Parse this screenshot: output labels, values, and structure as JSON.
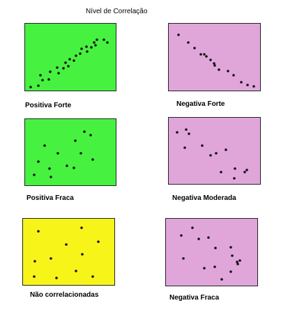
{
  "title": "Nível  de Correlação",
  "colors": {
    "green": "#46f23f",
    "pink": "#e0a6da",
    "yellow": "#f7f41a",
    "dot": "#111111"
  },
  "panels": [
    {
      "caption": "Positiva Forte",
      "fill": "green",
      "points": [
        [
          8,
          91
        ],
        [
          19,
          89
        ],
        [
          22,
          74
        ],
        [
          25,
          81
        ],
        [
          34,
          80
        ],
        [
          36,
          69
        ],
        [
          46,
          63
        ],
        [
          48,
          71
        ],
        [
          55,
          64
        ],
        [
          58,
          56
        ],
        [
          62,
          61
        ],
        [
          64,
          51
        ],
        [
          70,
          53
        ],
        [
          73,
          46
        ],
        [
          79,
          43
        ],
        [
          81,
          36
        ],
        [
          88,
          33
        ],
        [
          89,
          40
        ],
        [
          95,
          34
        ],
        [
          99,
          27
        ],
        [
          101,
          31
        ],
        [
          103,
          23
        ],
        [
          113,
          23
        ],
        [
          118,
          27
        ]
      ]
    },
    {
      "caption": "Negativa Forte",
      "fill": "pink",
      "points": [
        [
          14,
          16
        ],
        [
          28,
          27
        ],
        [
          37,
          35
        ],
        [
          46,
          44
        ],
        [
          51,
          44
        ],
        [
          54,
          47
        ],
        [
          60,
          52
        ],
        [
          65,
          57
        ],
        [
          66,
          60
        ],
        [
          72,
          66
        ],
        [
          85,
          68
        ],
        [
          93,
          74
        ],
        [
          104,
          84
        ],
        [
          113,
          88
        ],
        [
          122,
          90
        ]
      ]
    },
    {
      "caption": "Positiva Fraca",
      "fill": "green",
      "points": [
        [
          13,
          80
        ],
        [
          19,
          61
        ],
        [
          28,
          38
        ],
        [
          35,
          71
        ],
        [
          37,
          83
        ],
        [
          47,
          49
        ],
        [
          60,
          67
        ],
        [
          70,
          70
        ],
        [
          72,
          31
        ],
        [
          80,
          49
        ],
        [
          85,
          18
        ],
        [
          94,
          23
        ],
        [
          97,
          58
        ]
      ]
    },
    {
      "caption": "Negativa Moderada",
      "fill": "pink",
      "points": [
        [
          12,
          21
        ],
        [
          25,
          17
        ],
        [
          29,
          23
        ],
        [
          23,
          43
        ],
        [
          48,
          40
        ],
        [
          60,
          54
        ],
        [
          68,
          51
        ],
        [
          75,
          78
        ],
        [
          82,
          46
        ],
        [
          94,
          87
        ],
        [
          95,
          73
        ],
        [
          109,
          78
        ],
        [
          112,
          75
        ]
      ]
    },
    {
      "caption": "Não correlacionadas",
      "fill": "yellow",
      "points": [
        [
          22,
          18
        ],
        [
          84,
          13
        ],
        [
          108,
          33
        ],
        [
          62,
          37
        ],
        [
          17,
          61
        ],
        [
          40,
          57
        ],
        [
          85,
          51
        ],
        [
          16,
          83
        ],
        [
          76,
          75
        ],
        [
          100,
          83
        ],
        [
          48,
          85
        ]
      ]
    },
    {
      "caption": "Negativa Fraca",
      "fill": "pink",
      "points": [
        [
          22,
          24
        ],
        [
          38,
          13
        ],
        [
          47,
          29
        ],
        [
          61,
          27
        ],
        [
          71,
          42
        ],
        [
          93,
          41
        ],
        [
          95,
          53
        ],
        [
          106,
          60
        ],
        [
          102,
          62
        ],
        [
          103,
          65
        ],
        [
          25,
          57
        ],
        [
          55,
          71
        ],
        [
          70,
          69
        ],
        [
          93,
          76
        ],
        [
          80,
          87
        ]
      ]
    }
  ]
}
